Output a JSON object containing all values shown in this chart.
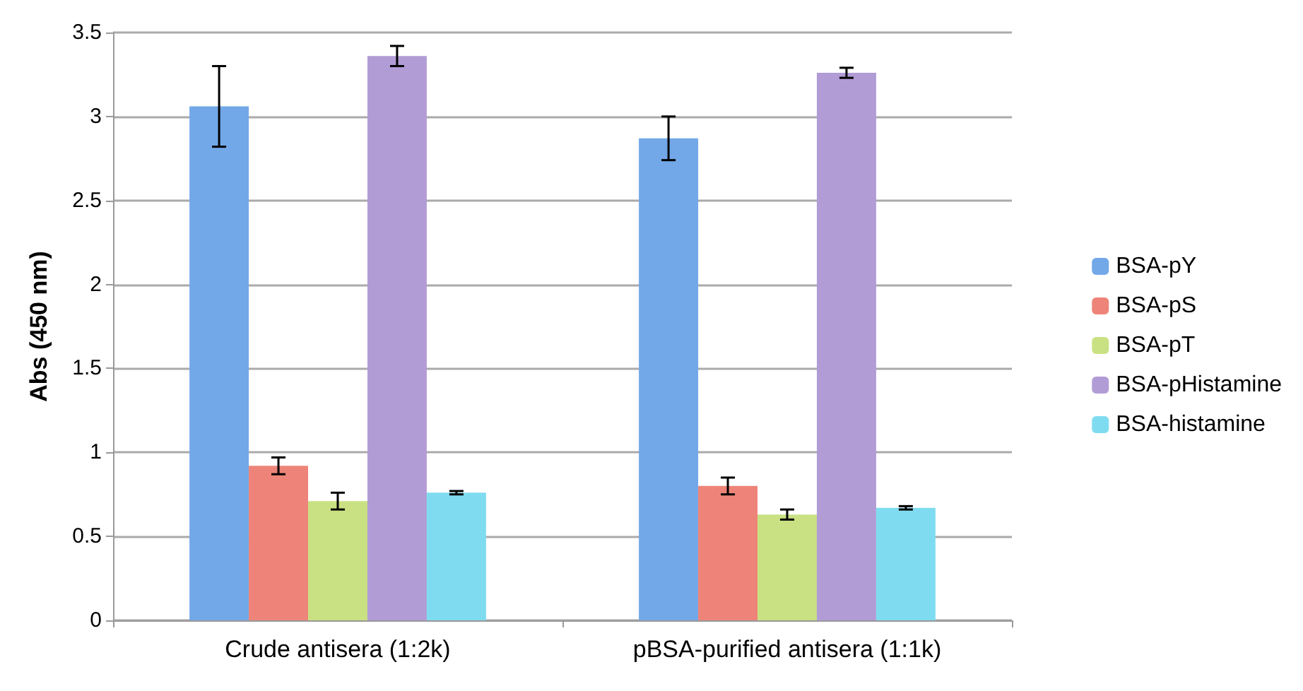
{
  "chart_data": {
    "type": "bar",
    "ylabel": "Abs (450 nm)",
    "categories": [
      "Crude antisera (1:2k)",
      "pBSA-purified antisera (1:1k)"
    ],
    "series": [
      {
        "name": "BSA-pY",
        "color": "#72a8e8",
        "values": [
          3.06,
          2.87
        ],
        "errors": [
          0.24,
          0.13
        ]
      },
      {
        "name": "BSA-pS",
        "color": "#ee8479",
        "values": [
          0.92,
          0.8
        ],
        "errors": [
          0.05,
          0.05
        ]
      },
      {
        "name": "BSA-pT",
        "color": "#c9e183",
        "values": [
          0.71,
          0.63
        ],
        "errors": [
          0.05,
          0.03
        ]
      },
      {
        "name": "BSA-pHistamine",
        "color": "#b29cd6",
        "values": [
          3.36,
          3.26
        ],
        "errors": [
          0.06,
          0.03
        ]
      },
      {
        "name": "BSA-histamine",
        "color": "#7fdcf0",
        "values": [
          0.76,
          0.67
        ],
        "errors": [
          0.01,
          0.01
        ]
      }
    ],
    "ylim": [
      0,
      3.5
    ],
    "yticks": [
      0,
      0.5,
      1,
      1.5,
      2,
      2.5,
      3,
      3.5
    ],
    "grid": "y",
    "legend": "right"
  }
}
